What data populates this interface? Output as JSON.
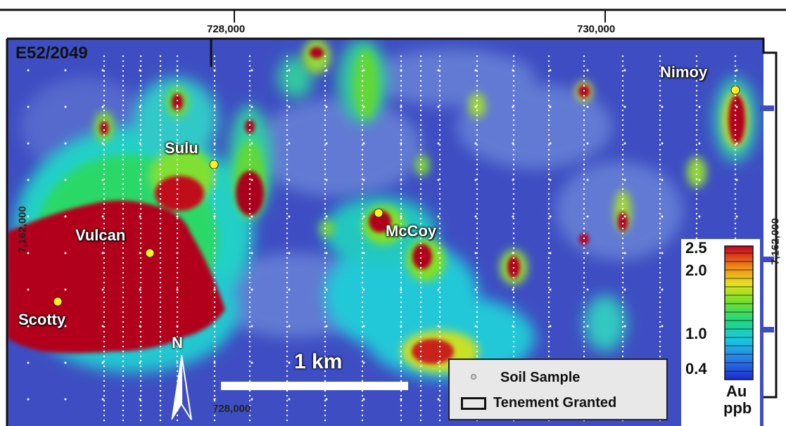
{
  "map": {
    "tenement_id": "E52/2049",
    "easting_ticks": [
      "728,000",
      "730,000"
    ],
    "easting_bottom": "728,000",
    "northing_labels": [
      "7,162,000",
      "7,162,000"
    ],
    "targets": [
      {
        "name": "Nimoy"
      },
      {
        "name": "Sulu"
      },
      {
        "name": "McCoy"
      },
      {
        "name": "Vulcan"
      },
      {
        "name": "Scotty"
      }
    ],
    "scale_bar": "1 km",
    "north": "N",
    "legend": {
      "soil_sample": "Soil Sample",
      "tenement_granted": "Tenement Granted"
    },
    "colorbar": {
      "labels": [
        "2.5",
        "2.0",
        "1.0",
        "0.4"
      ],
      "unit_top": "Au",
      "unit_bottom": "ppb"
    },
    "colors": {
      "background_low": "#3f4fc4",
      "high": "#b0001a",
      "target_marker": "#ffee22",
      "tenement_line": "#111111"
    }
  }
}
